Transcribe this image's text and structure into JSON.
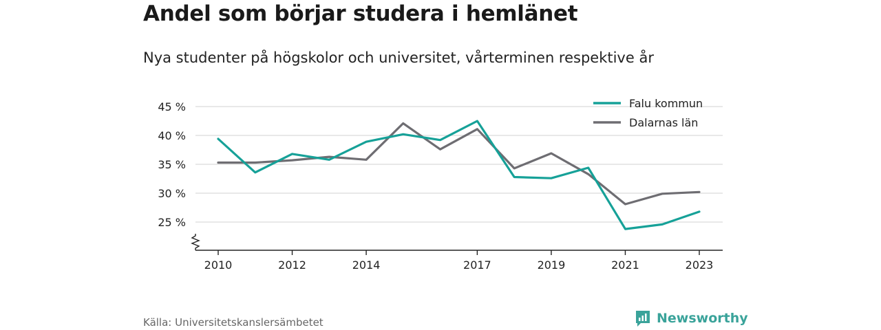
{
  "title": "Andel som börjar studera i hemlänet",
  "subtitle": "Nya studenter på högskolor och universitet, vårterminen respektive år",
  "source": "Källa: Universitetskanslersämbetet",
  "brand": {
    "name": "Newsworthy",
    "color": "#3aa39a",
    "icon": "bar-chart-logo-icon"
  },
  "colors": {
    "grid": "#d9d9d9",
    "axis": "#222222",
    "text": "#222222"
  },
  "chart_data": {
    "type": "line",
    "x": [
      2010,
      2011,
      2012,
      2013,
      2014,
      2015,
      2016,
      2017,
      2018,
      2019,
      2020,
      2021,
      2022,
      2023
    ],
    "xticks": [
      2010,
      2012,
      2014,
      2017,
      2019,
      2021,
      2023
    ],
    "xtick_labels": [
      "2010",
      "2012",
      "2014",
      "2017",
      "2019",
      "2021",
      "2023"
    ],
    "yticks": [
      25,
      30,
      35,
      40,
      45
    ],
    "ytick_labels": [
      "25 %",
      "30 %",
      "35 %",
      "40 %",
      "45 %"
    ],
    "ylim": [
      20,
      45
    ],
    "y_axis_break": true,
    "grid": true,
    "legend_position": "top-right",
    "series": [
      {
        "name": "Falu kommun",
        "color": "#16a198",
        "values": [
          39.4,
          33.6,
          36.8,
          35.8,
          38.9,
          40.2,
          39.2,
          42.5,
          32.8,
          32.6,
          34.4,
          23.8,
          24.6,
          26.8
        ]
      },
      {
        "name": "Dalarnas län",
        "color": "#6e6d72",
        "values": [
          35.3,
          35.3,
          35.7,
          36.3,
          35.8,
          42.1,
          37.6,
          41.1,
          34.3,
          36.9,
          33.3,
          28.1,
          29.9,
          30.2
        ]
      }
    ]
  }
}
